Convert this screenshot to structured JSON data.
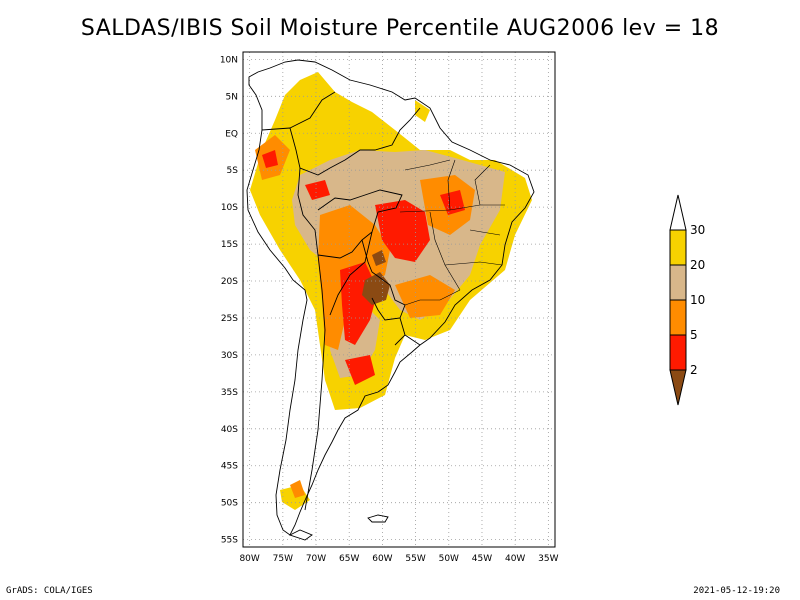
{
  "title": "SALDAS/IBIS Soil Moisture Percentile AUG2006 lev = 18",
  "footer": {
    "left": "GrADS: COLA/IGES",
    "right": "2021-05-12-19:20"
  },
  "map": {
    "lat_labels": [
      "10N",
      "5N",
      "EQ",
      "5S",
      "10S",
      "15S",
      "20S",
      "25S",
      "30S",
      "35S",
      "40S",
      "45S",
      "50S",
      "55S"
    ],
    "lon_labels": [
      "80W",
      "75W",
      "70W",
      "65W",
      "60W",
      "55W",
      "50W",
      "45W",
      "40W",
      "35W"
    ],
    "lat_range": [
      -56,
      11
    ],
    "lon_range": [
      -81,
      -34
    ]
  },
  "colorbar": {
    "labels": [
      "30",
      "20",
      "10",
      "5",
      "2"
    ],
    "bins": [
      {
        "range": ">30",
        "color": "#ffffff"
      },
      {
        "range": "20-30",
        "color": "#f7d200"
      },
      {
        "range": "10-20",
        "color": "#d8b78a"
      },
      {
        "range": "5-10",
        "color": "#ff8c00"
      },
      {
        "range": "2-5",
        "color": "#ff1a00"
      },
      {
        "range": "<2",
        "color": "#8b4a13"
      }
    ]
  }
}
